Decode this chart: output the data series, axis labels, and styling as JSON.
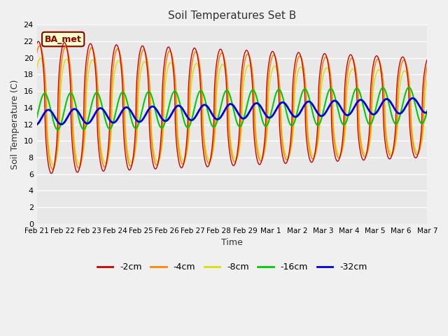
{
  "title": "Soil Temperatures Set B",
  "xlabel": "Time",
  "ylabel": "Soil Temperature (C)",
  "annotation": "BA_met",
  "ylim": [
    0,
    24
  ],
  "yticks": [
    0,
    2,
    4,
    6,
    8,
    10,
    12,
    14,
    16,
    18,
    20,
    22,
    24
  ],
  "colors": {
    "-2cm": "#cc0000",
    "-4cm": "#ff8800",
    "-8cm": "#dddd00",
    "-16cm": "#00cc00",
    "-32cm": "#0000dd"
  },
  "line_widths": {
    "-2cm": 1.0,
    "-4cm": 1.2,
    "-8cm": 1.0,
    "-16cm": 1.5,
    "-32cm": 2.0
  },
  "bg_color": "#e8e8e8",
  "plot_bg_upper": "#e8e8e8",
  "plot_bg_lower": "#f0f0f0",
  "grid_color": "#d0d0d0",
  "n_points": 720,
  "date_labels": [
    "Feb 21",
    "Feb 22",
    "Feb 23",
    "Feb 24",
    "Feb 25",
    "Feb 26",
    "Feb 27",
    "Feb 28",
    "Feb 29",
    "Mar 1",
    "Mar 2",
    "Mar 3",
    "Mar 4",
    "Mar 5",
    "Mar 6",
    "Mar 7"
  ],
  "n_days": 15
}
